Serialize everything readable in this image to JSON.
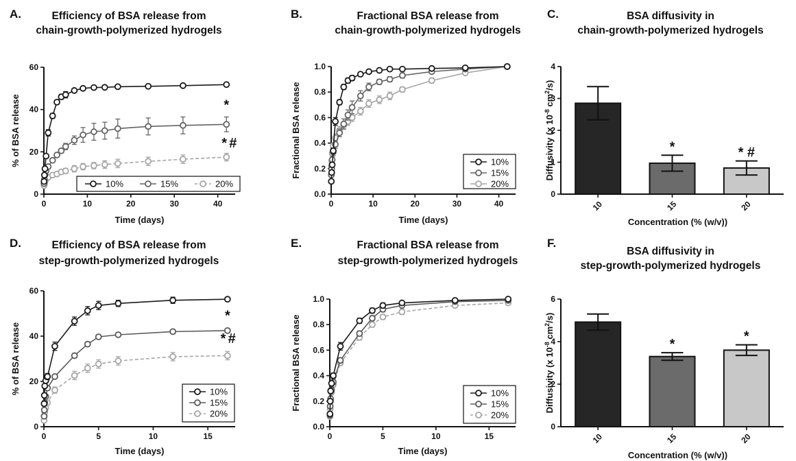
{
  "chart_data": [
    {
      "panel_letter": "A.",
      "type": "line",
      "title": "Efficiency of BSA release from",
      "subtitle": "chain-growth-polymerized hydrogels",
      "xlabel": "Time (days)",
      "ylabel": "% of BSA release",
      "xlim": [
        0,
        44
      ],
      "ylim": [
        0,
        60
      ],
      "x_ticks": [
        "0",
        "10",
        "20",
        "30",
        "40"
      ],
      "y_ticks": [
        "0",
        "20",
        "40",
        "60"
      ],
      "legend_position": "bottom, horizontal",
      "series": [
        {
          "name": "10%",
          "color": "#1a1a1a",
          "dashed": false,
          "x": [
            0.04,
            0.125,
            0.25,
            0.5,
            1,
            2,
            3,
            4,
            5,
            7,
            9,
            11.5,
            14,
            17,
            24,
            32,
            42
          ],
          "y": [
            6,
            9,
            12,
            18,
            29,
            37,
            43.5,
            46,
            47,
            49,
            50,
            50.4,
            50.5,
            50.8,
            51,
            51.3,
            51.8
          ],
          "err": [
            0.5,
            0.5,
            0.5,
            0.8,
            1.5,
            1.2,
            1.0,
            1.2,
            1.5,
            0.6,
            0.5,
            0.5,
            0.5,
            0.5,
            0.4,
            0.4,
            0.5
          ]
        },
        {
          "name": "15%",
          "color": "#646464",
          "dashed": false,
          "x": [
            0.04,
            0.125,
            0.25,
            0.5,
            1,
            2,
            3,
            4,
            5,
            7,
            9,
            11.5,
            14,
            17,
            24,
            32,
            42
          ],
          "y": [
            5,
            7,
            9,
            11,
            13,
            16,
            18.5,
            20.5,
            22.5,
            25.5,
            28,
            29.5,
            30,
            31,
            32,
            32.5,
            33
          ],
          "err": [
            0.5,
            0.5,
            0.5,
            0.8,
            1.0,
            1.0,
            1.0,
            1.0,
            1.5,
            2.0,
            3.5,
            4.0,
            4.0,
            4.5,
            4.0,
            4.0,
            3.5
          ]
        },
        {
          "name": "20%",
          "color": "#a6a6a6",
          "dashed": true,
          "x": [
            0.04,
            0.125,
            0.25,
            0.5,
            1,
            2,
            3,
            4,
            5,
            7,
            9,
            11.5,
            14,
            17,
            24,
            32,
            42
          ],
          "y": [
            4,
            5,
            6,
            7,
            8,
            9,
            9.5,
            10.5,
            11,
            12,
            13,
            13.5,
            14,
            14.5,
            15.5,
            16.5,
            17.5
          ],
          "err": [
            0.3,
            0.3,
            0.4,
            0.5,
            0.6,
            0.8,
            0.8,
            1.0,
            1.2,
            1.5,
            1.5,
            1.5,
            1.8,
            2.0,
            2.0,
            2.0,
            1.8
          ]
        }
      ],
      "annotations": [
        {
          "text": "*",
          "x": 42,
          "y": 40
        },
        {
          "text": "*",
          "x": 41.5,
          "y": 22
        },
        {
          "text": "#",
          "x": 43.5,
          "y": 22
        }
      ]
    },
    {
      "panel_letter": "B.",
      "type": "line",
      "title": "Fractional BSA release from",
      "subtitle": "chain-growth-polymerized hydrogels",
      "xlabel": "Time (days)",
      "ylabel": "Fractional BSA release",
      "xlim": [
        0,
        44
      ],
      "ylim": [
        0,
        1.0
      ],
      "x_ticks": [
        "0",
        "10",
        "20",
        "30",
        "40"
      ],
      "y_ticks": [
        "0.0",
        "0.2",
        "0.4",
        "0.6",
        "0.8",
        "1.0"
      ],
      "legend_position": "bottom-right",
      "series": [
        {
          "name": "10%",
          "color": "#1a1a1a",
          "dashed": false,
          "x": [
            0.04,
            0.125,
            0.25,
            0.5,
            1,
            2,
            3,
            4,
            5,
            7,
            9,
            11.5,
            14,
            17,
            24,
            32,
            42
          ],
          "y": [
            0.1,
            0.17,
            0.23,
            0.34,
            0.57,
            0.72,
            0.84,
            0.89,
            0.91,
            0.94,
            0.96,
            0.97,
            0.98,
            0.98,
            0.985,
            0.99,
            1.0
          ],
          "err": [
            0.01,
            0.01,
            0.02,
            0.02,
            0.03,
            0.02,
            0.02,
            0.02,
            0.02,
            0.01,
            0.01,
            0.01,
            0.01,
            0.01,
            0.01,
            0.01,
            0
          ]
        },
        {
          "name": "15%",
          "color": "#646464",
          "dashed": false,
          "x": [
            0.04,
            0.125,
            0.25,
            0.5,
            1,
            2,
            3,
            4,
            5,
            7,
            9,
            11.5,
            14,
            17,
            24,
            32,
            42
          ],
          "y": [
            0.15,
            0.2,
            0.27,
            0.33,
            0.39,
            0.48,
            0.55,
            0.62,
            0.68,
            0.77,
            0.84,
            0.88,
            0.9,
            0.93,
            0.96,
            0.98,
            1.0
          ],
          "err": [
            0.01,
            0.02,
            0.02,
            0.03,
            0.03,
            0.03,
            0.04,
            0.04,
            0.05,
            0.04,
            0.03,
            0.02,
            0.02,
            0.02,
            0.01,
            0.01,
            0
          ]
        },
        {
          "name": "20%",
          "color": "#a6a6a6",
          "dashed": false,
          "x": [
            0.04,
            0.125,
            0.25,
            0.5,
            1,
            2,
            3,
            4,
            5,
            7,
            9,
            11.5,
            14,
            17,
            24,
            32,
            42
          ],
          "y": [
            0.22,
            0.26,
            0.32,
            0.38,
            0.44,
            0.5,
            0.54,
            0.57,
            0.6,
            0.65,
            0.71,
            0.74,
            0.77,
            0.82,
            0.89,
            0.95,
            1.0
          ],
          "err": [
            0.02,
            0.02,
            0.02,
            0.02,
            0.03,
            0.03,
            0.03,
            0.03,
            0.03,
            0.03,
            0.03,
            0.03,
            0.03,
            0.02,
            0.02,
            0.01,
            0
          ]
        }
      ]
    },
    {
      "panel_letter": "C.",
      "type": "bar",
      "title": "BSA diffusivity in",
      "subtitle": "chain-growth-polymerized hydrogels",
      "xlabel": "Concentration (% (w/v))",
      "ylabel_pre": "Diffusivity (x 10",
      "ylabel_sup1": "-8",
      "ylabel_mid": " cm",
      "ylabel_sup2": "2",
      "ylabel_post": "/s)",
      "ylim": [
        0,
        4
      ],
      "y_ticks": [
        "0",
        "1",
        "2",
        "3",
        "4"
      ],
      "categories": [
        "10",
        "15",
        "20"
      ],
      "values": [
        2.85,
        0.97,
        0.82
      ],
      "errors": [
        0.52,
        0.25,
        0.22
      ],
      "colors": [
        "#262626",
        "#6b6b6b",
        "#c8c8c8"
      ],
      "annotations": [
        {
          "category": "15",
          "text": "*"
        },
        {
          "category": "20",
          "text": "* #"
        }
      ]
    },
    {
      "panel_letter": "D.",
      "type": "line",
      "title": "Efficiency of BSA release from",
      "subtitle": "step-growth-polymerized hydrogels",
      "xlabel": "Time (days)",
      "ylabel": "% of BSA release",
      "xlim": [
        0,
        17.5
      ],
      "ylim": [
        0,
        65
      ],
      "x_ticks": [
        "0",
        "5",
        "10",
        "15"
      ],
      "y_ticks": [
        "0",
        "20",
        "40",
        "60"
      ],
      "legend_position": "bottom-right",
      "series": [
        {
          "name": "10%",
          "color": "#1a1a1a",
          "dashed": false,
          "x": [
            0.02,
            0.04,
            0.08,
            0.17,
            0.33,
            1,
            2.8,
            4,
            5,
            6.8,
            11.8,
            16.8
          ],
          "y": [
            11,
            15,
            19.5,
            22,
            24,
            38.5,
            50.5,
            55.5,
            58,
            59,
            60.5,
            61
          ],
          "err": [
            1,
            1,
            1,
            1,
            1.5,
            2,
            2,
            2,
            2,
            1.5,
            1.5,
            1
          ]
        },
        {
          "name": "15%",
          "color": "#5a5a5a",
          "dashed": false,
          "x": [
            0.02,
            0.04,
            0.08,
            0.17,
            0.33,
            1,
            2.8,
            4,
            5,
            6.8,
            11.8,
            16.8
          ],
          "y": [
            5,
            8,
            11.5,
            14.5,
            18.5,
            24,
            34,
            39.5,
            43,
            44,
            45.5,
            46
          ],
          "err": [
            0.5,
            0.5,
            0.5,
            0.5,
            0.8,
            1,
            1,
            1,
            1,
            1,
            1,
            1
          ]
        },
        {
          "name": "20%",
          "color": "#a6a6a6",
          "dashed": true,
          "x": [
            0.02,
            0.04,
            0.08,
            0.17,
            0.33,
            1,
            2.8,
            4,
            5,
            6.8,
            11.8,
            16.8
          ],
          "y": [
            3,
            5,
            7,
            9,
            11.5,
            17.5,
            24.5,
            28,
            30,
            31.5,
            33.5,
            34
          ],
          "err": [
            0.5,
            0.5,
            0.8,
            1,
            1,
            1.5,
            2,
            2,
            2,
            2,
            2,
            2
          ]
        }
      ],
      "annotations": [
        {
          "text": "*",
          "x": 16.8,
          "y": 51
        },
        {
          "text": "*",
          "x": 16.4,
          "y": 40
        },
        {
          "text": "#",
          "x": 17.2,
          "y": 40
        }
      ]
    },
    {
      "panel_letter": "E.",
      "type": "line",
      "title": "Fractional BSA release from",
      "subtitle": "step-growth-polymerized hydrogels",
      "xlabel": "Time (days)",
      "ylabel": "Fractional BSA release",
      "xlim": [
        0,
        17.5
      ],
      "ylim": [
        0,
        1.0
      ],
      "x_ticks": [
        "0",
        "5",
        "10",
        "15"
      ],
      "y_ticks": [
        "0.0",
        "0.2",
        "0.4",
        "0.6",
        "0.8",
        "1.0"
      ],
      "legend_position": "bottom-right",
      "series": [
        {
          "name": "10%",
          "color": "#1a1a1a",
          "dashed": false,
          "x": [
            0.02,
            0.04,
            0.08,
            0.17,
            0.33,
            1,
            2.8,
            4,
            5,
            6.8,
            11.8,
            16.8
          ],
          "y": [
            0.1,
            0.2,
            0.28,
            0.34,
            0.4,
            0.63,
            0.83,
            0.91,
            0.95,
            0.97,
            0.99,
            1.0
          ],
          "err": [
            0.01,
            0.01,
            0.02,
            0.02,
            0.02,
            0.03,
            0.02,
            0.02,
            0.02,
            0.01,
            0.01,
            0.005
          ]
        },
        {
          "name": "15%",
          "color": "#5a5a5a",
          "dashed": false,
          "x": [
            0.02,
            0.04,
            0.08,
            0.17,
            0.33,
            1,
            2.8,
            4,
            5,
            6.8,
            11.8,
            16.8
          ],
          "y": [
            0.09,
            0.16,
            0.22,
            0.29,
            0.35,
            0.52,
            0.73,
            0.85,
            0.92,
            0.95,
            0.98,
            0.99
          ],
          "err": [
            0.01,
            0.01,
            0.01,
            0.02,
            0.02,
            0.02,
            0.02,
            0.02,
            0.02,
            0.01,
            0.01,
            0.01
          ]
        },
        {
          "name": "20%",
          "color": "#a6a6a6",
          "dashed": true,
          "x": [
            0.02,
            0.04,
            0.08,
            0.17,
            0.33,
            1,
            2.8,
            4,
            5,
            6.8,
            11.8,
            16.8
          ],
          "y": [
            0.08,
            0.14,
            0.2,
            0.27,
            0.33,
            0.5,
            0.7,
            0.8,
            0.86,
            0.9,
            0.95,
            0.97
          ],
          "err": [
            0.01,
            0.01,
            0.02,
            0.02,
            0.02,
            0.02,
            0.02,
            0.02,
            0.02,
            0.02,
            0.01,
            0.01
          ]
        }
      ]
    },
    {
      "panel_letter": "F.",
      "type": "bar",
      "title": "BSA diffusivity in",
      "subtitle": "step-growth-polymerized hydrogels",
      "xlabel": "Concentration (% (w/v))",
      "ylabel_pre": "Diffusivity (x 10",
      "ylabel_sup1": "-8",
      "ylabel_mid": " cm",
      "ylabel_sup2": "2",
      "ylabel_post": "/s)",
      "ylim": [
        0,
        6
      ],
      "y_ticks": [
        "0",
        "2",
        "4",
        "6"
      ],
      "categories": [
        "10",
        "15",
        "20"
      ],
      "values": [
        4.92,
        3.3,
        3.6
      ],
      "errors": [
        0.38,
        0.18,
        0.25
      ],
      "colors": [
        "#262626",
        "#6b6b6b",
        "#c8c8c8"
      ],
      "annotations": [
        {
          "category": "15",
          "text": "*"
        },
        {
          "category": "20",
          "text": "*"
        }
      ]
    }
  ]
}
